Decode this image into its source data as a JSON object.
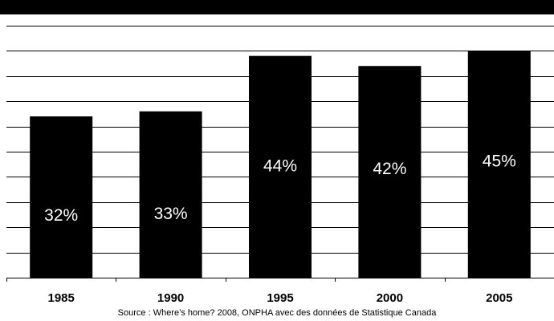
{
  "chart_data": {
    "type": "bar",
    "title": "",
    "categories": [
      "1985",
      "1990",
      "1995",
      "2000",
      "2005"
    ],
    "values": [
      32,
      33,
      44,
      42,
      45
    ],
    "data_labels": [
      "32%",
      "33%",
      "44%",
      "42%",
      "45%"
    ],
    "xlabel": "",
    "ylabel": "",
    "ylim": [
      0,
      50
    ],
    "grid": true,
    "legend": "none",
    "bar_color": "#000000",
    "label_color": "#ffffff",
    "header_bar_color": "#000000"
  },
  "source": "Source : Where’s home? 2008, ONPHA avec des données de Statistique Canada"
}
